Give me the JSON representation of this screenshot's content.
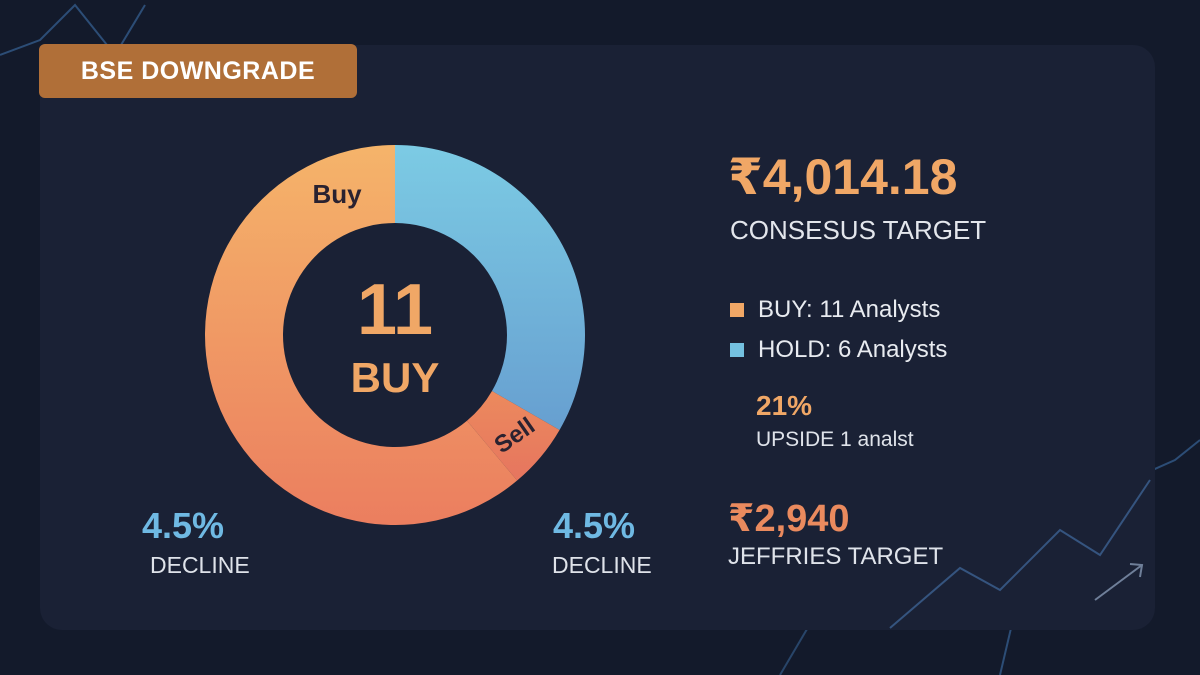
{
  "badge": {
    "label": "BSE DOWNGRADE"
  },
  "colors": {
    "buy": "#f0a766",
    "hold": "#74c1e0",
    "accent_blue": "#6fb9e3",
    "sell": "#e97b60"
  },
  "chart_data": {
    "type": "pie",
    "style": "donut",
    "slices": [
      {
        "label": "Buy",
        "value": 11
      },
      {
        "label": "Hold",
        "value": 6
      },
      {
        "label": "Sell",
        "value": 1
      }
    ],
    "center_value": "11",
    "center_label": "BUY",
    "slice_labels": {
      "buy": "Buy",
      "sell": "Sell"
    }
  },
  "left_stats": [
    {
      "value": "4.5%",
      "label": "DECLINE"
    },
    {
      "value": "4.5%",
      "label": "DECLINE"
    }
  ],
  "consensus": {
    "value": "₹4,014.18",
    "label": "CONSESUS TARGET"
  },
  "legend": [
    {
      "key": "BUY:",
      "text": " 11 Analysts"
    },
    {
      "key": "HOLD:",
      "text": " 6 Analysts"
    }
  ],
  "upside": {
    "value": "21%",
    "label": "UPSIDE 1 analst"
  },
  "jefferies": {
    "value": "₹2,940",
    "label": "JEFFRIES TARGET"
  }
}
